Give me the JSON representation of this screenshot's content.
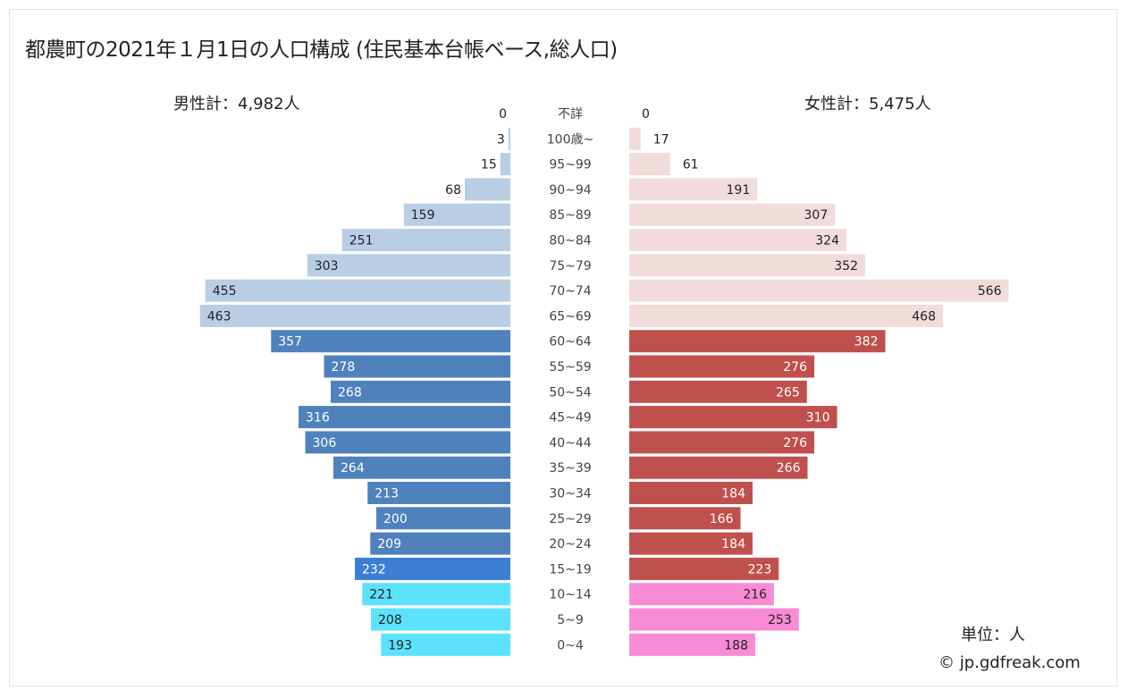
{
  "title": "都農町の2021年１月1日の人口構成 (住民基本台帳ベース,総人口)",
  "male_total": "男性計：4,982人",
  "female_total": "女性計：5,475人",
  "unit": "単位：人",
  "credit": "© jp.gdfreak.com",
  "chart_data": {
    "type": "bar",
    "orientation": "horizontal population pyramid",
    "title": "都農町の2021年１月1日の人口構成 (住民基本台帳ベース,総人口)",
    "categories": [
      "不詳",
      "100歳~",
      "95~99",
      "90~94",
      "85~89",
      "80~84",
      "75~79",
      "70~74",
      "65~69",
      "60~64",
      "55~59",
      "50~54",
      "45~49",
      "40~44",
      "35~39",
      "30~34",
      "25~29",
      "20~24",
      "15~19",
      "10~14",
      "5~9",
      "0~4"
    ],
    "series": [
      {
        "name": "男性",
        "values": [
          0,
          3,
          15,
          68,
          159,
          251,
          303,
          455,
          463,
          357,
          278,
          268,
          316,
          306,
          264,
          213,
          200,
          209,
          232,
          221,
          208,
          193
        ]
      },
      {
        "name": "女性",
        "values": [
          0,
          17,
          61,
          191,
          307,
          324,
          352,
          566,
          468,
          382,
          276,
          265,
          310,
          276,
          266,
          184,
          166,
          184,
          223,
          216,
          253,
          188
        ]
      }
    ],
    "colors": {
      "male_65plus": "#b9cde5",
      "male_20_64": "#4f81bd",
      "male_15_19": "#3a7fd4",
      "male_0_14": "#5ce2fd",
      "female_65plus": "#f2dcdb",
      "female_20_64": "#c0504d",
      "female_15_19": "#c0504d",
      "female_0_14": "#f98bd6"
    }
  }
}
